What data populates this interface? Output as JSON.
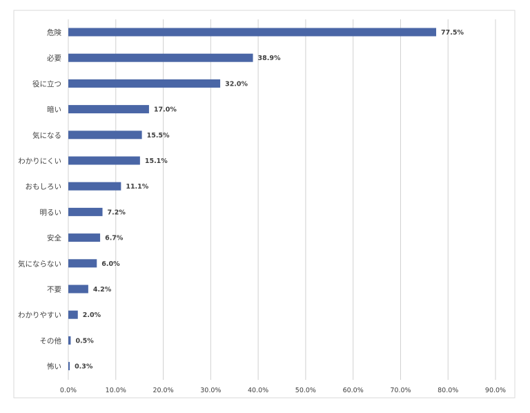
{
  "chart_data": {
    "type": "bar",
    "orientation": "horizontal",
    "title": "",
    "xlabel": "",
    "ylabel": "",
    "categories": [
      "危険",
      "必要",
      "役に立つ",
      "暗い",
      "気になる",
      "わかりにくい",
      "おもしろい",
      "明るい",
      "安全",
      "気にならない",
      "不要",
      "わかりやすい",
      "その他",
      "怖い"
    ],
    "values": [
      77.5,
      38.9,
      32.0,
      17.0,
      15.5,
      15.1,
      11.1,
      7.2,
      6.7,
      6.0,
      4.2,
      2.0,
      0.5,
      0.3
    ],
    "value_labels": [
      "77.5%",
      "38.9%",
      "32.0%",
      "17.0%",
      "15.5%",
      "15.1%",
      "11.1%",
      "7.2%",
      "6.7%",
      "6.0%",
      "4.2%",
      "2.0%",
      "0.5%",
      "0.3%"
    ],
    "xlim": [
      0,
      90
    ],
    "xticks": [
      0,
      10,
      20,
      30,
      40,
      50,
      60,
      70,
      80,
      90
    ],
    "xtick_labels": [
      "0.0%",
      "10.0%",
      "20.0%",
      "30.0%",
      "40.0%",
      "50.0%",
      "60.0%",
      "70.0%",
      "80.0%",
      "90.0%"
    ],
    "grid": "vertical",
    "legend": "none",
    "bar_color": "#4a66a6"
  }
}
